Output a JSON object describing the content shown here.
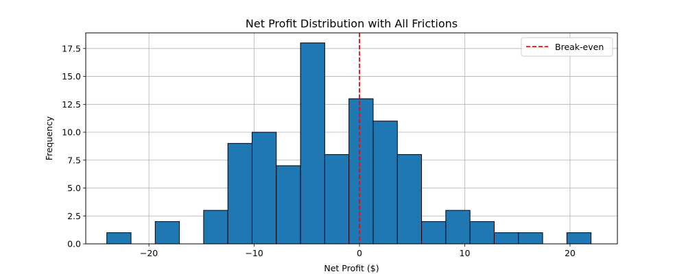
{
  "chart_data": {
    "type": "histogram",
    "title": "Net Profit Distribution with All Frictions",
    "xlabel": "Net Profit ($)",
    "ylabel": "Frequency",
    "xlim": [
      -26,
      24.5
    ],
    "ylim": [
      0,
      18.9
    ],
    "xticks": [
      -20,
      -10,
      0,
      10,
      20
    ],
    "xtick_labels": [
      "−20",
      "−10",
      "0",
      "10",
      "20"
    ],
    "yticks": [
      0,
      2.5,
      5,
      7.5,
      10,
      12.5,
      15,
      17.5
    ],
    "ytick_labels": [
      "0.0",
      "2.5",
      "5.0",
      "7.5",
      "10.0",
      "12.5",
      "15.0",
      "17.5"
    ],
    "grid": true,
    "bin_start": -24.0,
    "bin_width": 2.3,
    "counts": [
      1,
      0,
      2,
      0,
      3,
      9,
      10,
      7,
      18,
      8,
      13,
      11,
      8,
      2,
      3,
      2,
      1,
      1,
      0,
      1
    ],
    "bar_color": "#1f77b4",
    "edge_color": "#000000",
    "reference_line": {
      "x": 0,
      "label": "Break-even",
      "color": "#ff0000",
      "style": "dashed"
    },
    "legend_position": "top-right"
  }
}
